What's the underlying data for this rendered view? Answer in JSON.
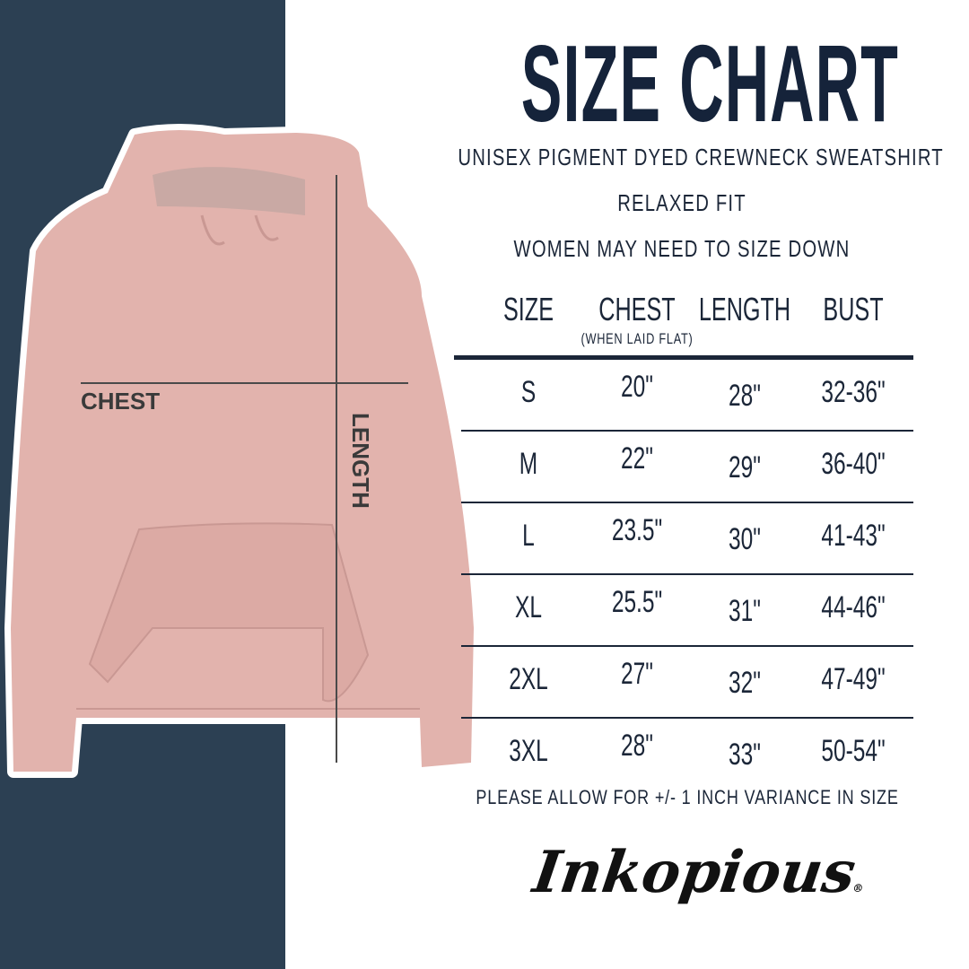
{
  "title": "SIZE CHART",
  "subtitle_lines": [
    "UNISEX PIGMENT DYED CREWNECK SWEATSHIRT",
    "RELAXED FIT",
    "WOMEN MAY NEED TO SIZE DOWN"
  ],
  "table": {
    "headers": [
      "SIZE",
      "CHEST",
      "LENGTH",
      "BUST"
    ],
    "chest_note": "(WHEN LAID FLAT)",
    "rows": [
      [
        "S",
        "20\"",
        "28\"",
        "32-36\""
      ],
      [
        "M",
        "22\"",
        "29\"",
        "36-40\""
      ],
      [
        "L",
        "23.5\"",
        "30\"",
        "41-43\""
      ],
      [
        "XL",
        "25.5\"",
        "31\"",
        "44-46\""
      ],
      [
        "2XL",
        "27\"",
        "32\"",
        "47-49\""
      ],
      [
        "3XL",
        "28\"",
        "33\"",
        "50-54\""
      ]
    ]
  },
  "footnote": "PLEASE ALLOW FOR +/- 1 INCH VARIANCE IN SIZE",
  "image_labels": {
    "chest": "CHEST",
    "length": "LENGTH"
  },
  "brand": {
    "logo_text": "Inkopious",
    "registered": "®"
  },
  "colors": {
    "panel": "#2c4053",
    "text": "#1b2638",
    "hoodie": "#e2b3ad"
  }
}
